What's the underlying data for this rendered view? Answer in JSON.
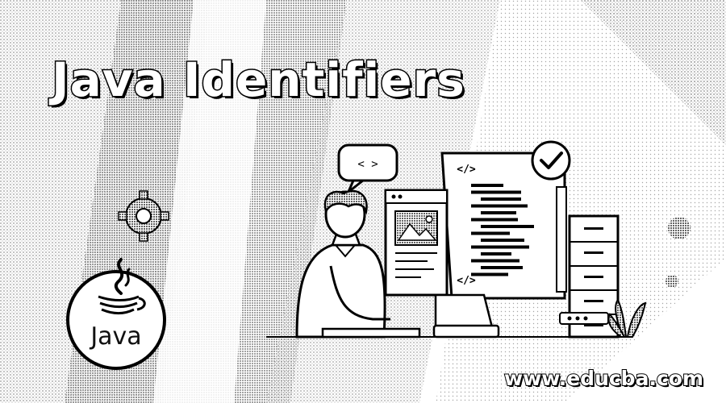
{
  "banner": {
    "title": "Java Identifiers",
    "logo_text": "Java",
    "website": "www.educba.com"
  },
  "illustration": {
    "speech_bubble_glyph": "< >",
    "code_tag_glyph": "</>"
  },
  "colors": {
    "background": "#ffffff",
    "ink": "#000000",
    "stipple": "#555555"
  }
}
